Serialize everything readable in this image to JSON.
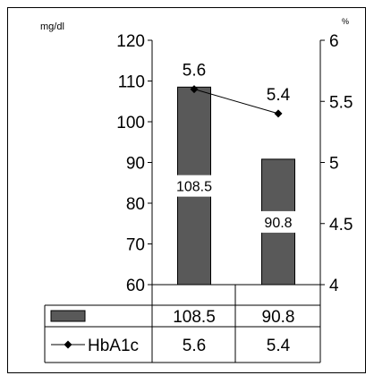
{
  "chart_data": {
    "type": "bar",
    "categories": [
      "",
      ""
    ],
    "left_axis": {
      "unit_label": "mg/dl",
      "min": 60,
      "max": 120,
      "ticks": [
        60,
        70,
        80,
        90,
        100,
        110,
        120
      ]
    },
    "right_axis": {
      "unit_label": "%",
      "min": 4,
      "max": 6,
      "ticks": [
        "4",
        "4.5",
        "5",
        "5.5",
        "6"
      ]
    },
    "series": [
      {
        "type": "bar",
        "axis": "left",
        "color": "#595959",
        "values": [
          108.5,
          90.8
        ],
        "labels": [
          "108.5",
          "90.8"
        ]
      },
      {
        "type": "line",
        "axis": "right",
        "name": "HbA1c",
        "color": "#000000",
        "values": [
          5.6,
          5.4
        ],
        "labels": [
          "5.6",
          "5.4"
        ]
      }
    ],
    "grid": false,
    "legend": "data-table-below"
  }
}
